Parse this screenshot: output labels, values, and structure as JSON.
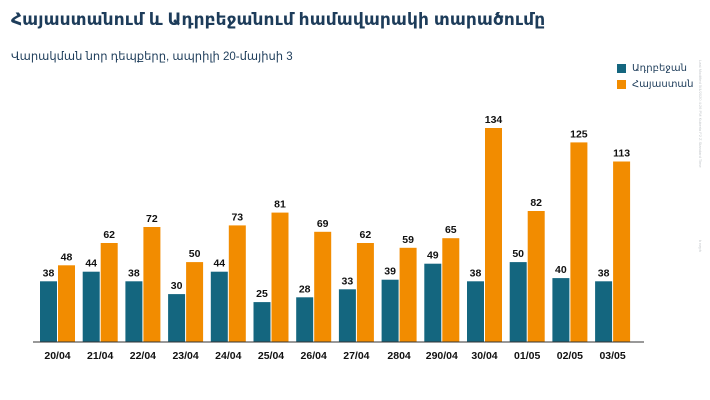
{
  "title": "Հայաստանում և Ադրբեջանում համավարակի տարածումը",
  "subtitle": "Վարակման նոր դեպքերը, ապրիլի 20-մայիսի 3",
  "side_note": "Last Modified 5/4/2020 4:26 PM Kukeria F2 Z Standard Time",
  "side_note_2": "k neph",
  "colors": {
    "azerbaijan": "#14667f",
    "armenia": "#f28c00",
    "axis": "#333333"
  },
  "chart_data": {
    "type": "bar",
    "categories": [
      "20/04",
      "21/04",
      "22/04",
      "23/04",
      "24/04",
      "25/04",
      "26/04",
      "27/04",
      "2804",
      "290/04",
      "30/04",
      "01/05",
      "02/05",
      "03/05"
    ],
    "series": [
      {
        "name": "Ադրբեջան",
        "color": "#14667f",
        "values": [
          38,
          44,
          38,
          30,
          44,
          25,
          28,
          33,
          39,
          49,
          38,
          50,
          40,
          38
        ]
      },
      {
        "name": "Հայաստան",
        "color": "#f28c00",
        "values": [
          48,
          62,
          72,
          50,
          73,
          81,
          69,
          62,
          59,
          65,
          134,
          82,
          125,
          113
        ]
      }
    ],
    "ylim": [
      0,
      134
    ],
    "legend": "top-right",
    "grid": false
  }
}
